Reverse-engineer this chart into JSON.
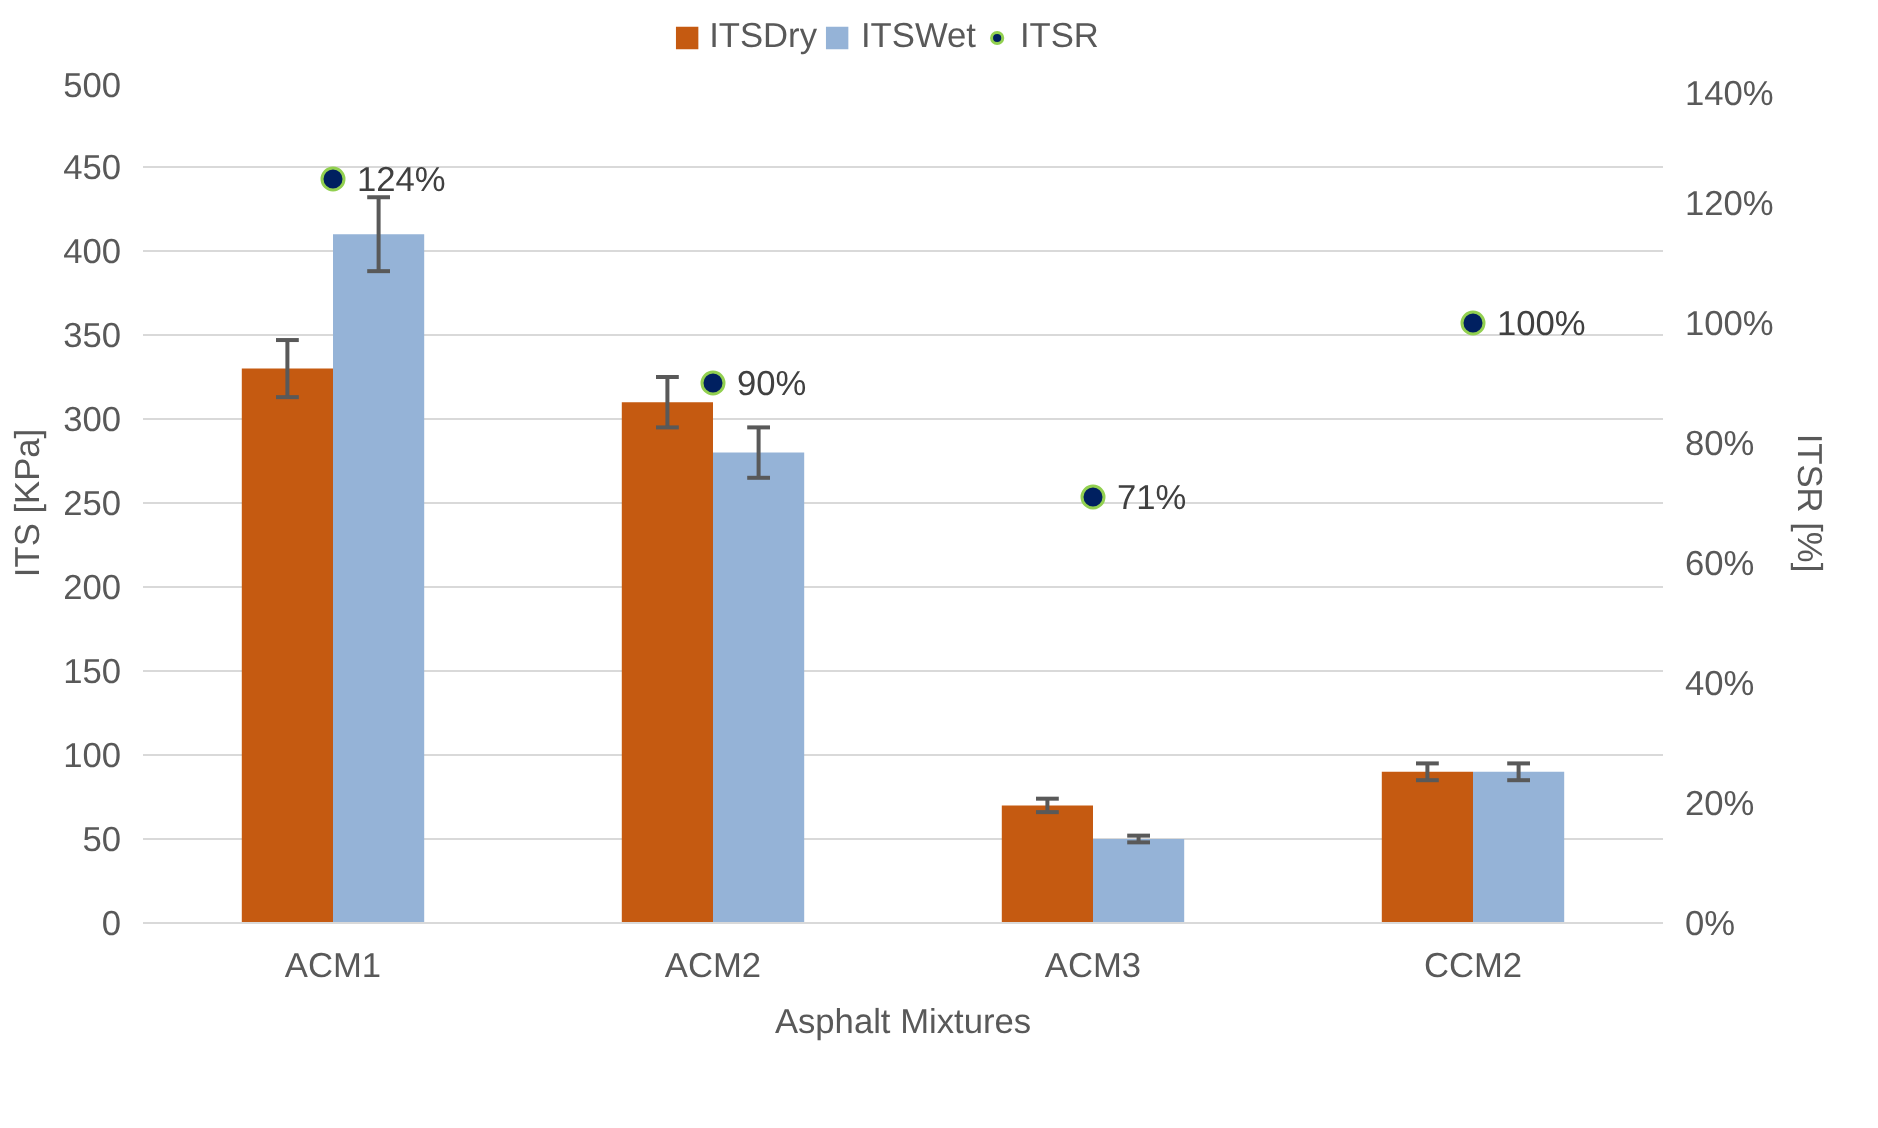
{
  "chart_data": {
    "type": "bar",
    "xlabel": "Asphalt Mixtures",
    "ylabel": "ITS [KPa]",
    "y2label": "ITSR [%]",
    "categories": [
      "ACM1",
      "ACM2",
      "ACM3",
      "CCM2"
    ],
    "series": [
      {
        "name": "ITSDry",
        "color": "#c55a11",
        "values": [
          330,
          310,
          70,
          90
        ],
        "errors": [
          17,
          15,
          4,
          5
        ]
      },
      {
        "name": "ITSWet",
        "color": "#95b3d7",
        "values": [
          410,
          280,
          50,
          90
        ],
        "errors": [
          22,
          15,
          2,
          5
        ]
      },
      {
        "name": "ITSR",
        "type": "scatter",
        "axis": "y2",
        "color": "#002060",
        "values": [
          124,
          90,
          71,
          100
        ],
        "value_labels": [
          "124%",
          "90%",
          "71%",
          "100%"
        ]
      }
    ],
    "ylim": [
      0,
      500
    ],
    "yticks": [
      0,
      50,
      100,
      150,
      200,
      250,
      300,
      350,
      400,
      450,
      500
    ],
    "y2lim": [
      0,
      140
    ],
    "y2ticks": [
      {
        "value": 0,
        "label": "0%"
      },
      {
        "value": 20,
        "label": "20%"
      },
      {
        "value": 40,
        "label": "40%"
      },
      {
        "value": 60,
        "label": "60%"
      },
      {
        "value": 80,
        "label": "80%"
      },
      {
        "value": 100,
        "label": "100%"
      },
      {
        "value": 120,
        "label": "120%"
      },
      {
        "value": 140,
        "label": "140%"
      }
    ],
    "grid": "y",
    "legend": "top",
    "marker": "circle"
  }
}
